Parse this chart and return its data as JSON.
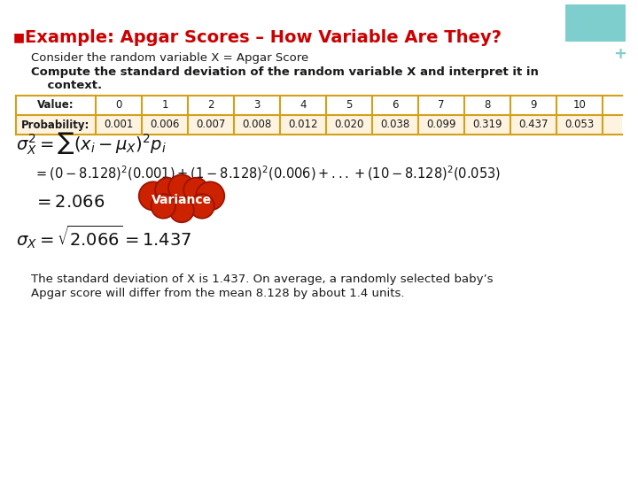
{
  "title": "Example: Apgar Scores – How Variable Are They?",
  "title_color": "#cc0000",
  "title_bullet_color": "#cc0000",
  "bg_color": "#ffffff",
  "top_right_rect_color": "#7ecece",
  "plus_color": "#7ecece",
  "intro_line1": "Consider the random variable X = Apgar Score",
  "intro_line2_bold": "Compute the standard deviation of the random variable X and interpret it in",
  "intro_line3_bold": "    context.",
  "table_headers": [
    "Value:",
    "0",
    "1",
    "2",
    "3",
    "4",
    "5",
    "6",
    "7",
    "8",
    "9",
    "10"
  ],
  "table_row2_label": "Probability:",
  "table_row2_values": [
    "0.001",
    "0.006",
    "0.007",
    "0.008",
    "0.012",
    "0.020",
    "0.038",
    "0.099",
    "0.319",
    "0.437",
    "0.053"
  ],
  "table_row1_bg": "#ffffff",
  "table_row2_bg": "#fdf3e0",
  "table_border_color": "#d4a017",
  "cloud_text": "Variance",
  "cloud_color": "#cc2200",
  "cloud_text_color": "#ffffff",
  "footer_line1": "The standard deviation of X is 1.437. On average, a randomly selected baby’s",
  "footer_line2": "Apgar score will differ from the mean 8.128 by about 1.4 units."
}
